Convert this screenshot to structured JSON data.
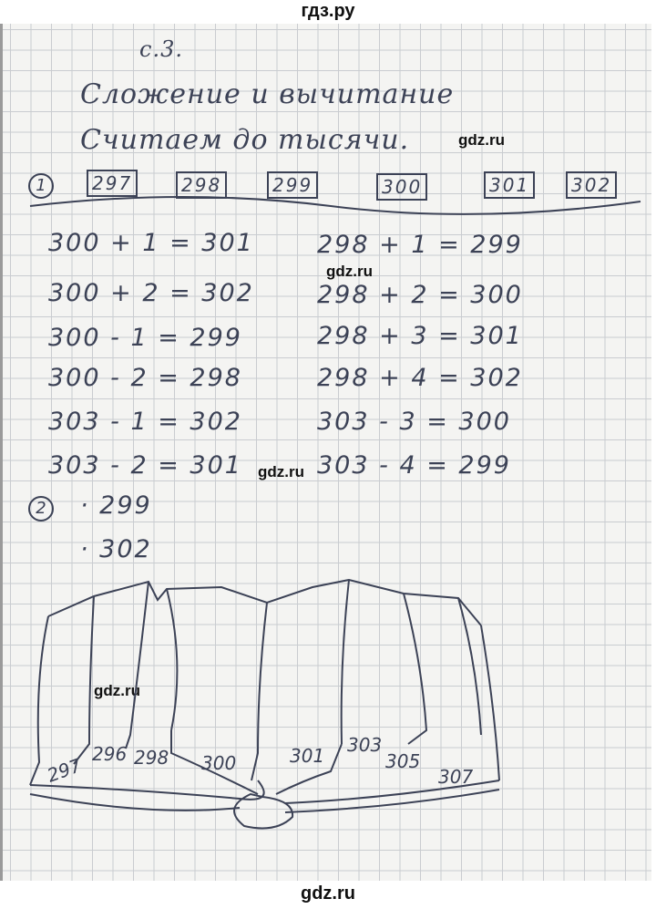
{
  "header": {
    "site": "гдз.ру"
  },
  "footer": {
    "site": "gdz.ru"
  },
  "watermark": "gdz.ru",
  "page": {
    "page_label": "с.3.",
    "title_line1": "Сложение и вычитание",
    "title_line2": "Считаем до тысячи."
  },
  "task1": {
    "number": "1",
    "boxes": [
      "297",
      "298",
      "299",
      "300",
      "301",
      "302"
    ],
    "left_equations": [
      "300 + 1 = 301",
      "300 + 2 = 302",
      "300 - 1 = 299",
      "300 - 2 = 298",
      "303 - 1 = 302",
      "303 - 2 = 301"
    ],
    "right_equations": [
      "298 + 1 = 299",
      "298 + 2 = 300",
      "298 + 3 = 301",
      "298 + 4 = 302",
      "303 - 3 = 300",
      "303 - 4 = 299"
    ]
  },
  "task2": {
    "number": "2",
    "answers": [
      "· 299",
      "· 302"
    ]
  },
  "book": {
    "page_numbers": [
      "297",
      "296",
      "298",
      "300",
      "301",
      "303",
      "305",
      "307"
    ]
  }
}
